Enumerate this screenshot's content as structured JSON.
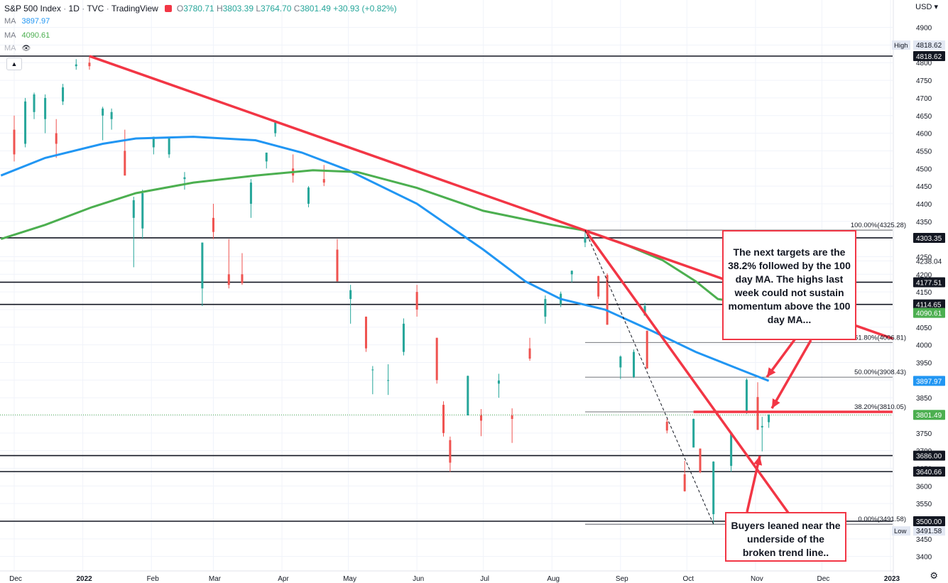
{
  "header": {
    "symbol": "S&P 500 Index",
    "interval": "1D",
    "source": "TVC",
    "platform": "TradingView",
    "o_label": "O",
    "o": "3780.71",
    "h_label": "H",
    "h": "3803.39",
    "l_label": "L",
    "l": "3764.70",
    "c_label": "C",
    "c": "3801.49",
    "change": "+30.93 (+0.82%)"
  },
  "ma_rows": [
    {
      "label": "MA",
      "value": "3897.97",
      "color": "#2196f3"
    },
    {
      "label": "MA",
      "value": "4090.61",
      "color": "#4caf50"
    },
    {
      "label": "MA",
      "value": ""
    }
  ],
  "currency": "USD",
  "collapse_icon": "chevron-up-icon",
  "settings_icon": "gear-icon",
  "annotations": {
    "top": "The next targets are the 38.2% followed by the 100 day MA. The highs last week could not sustain momentum above the 100 day MA...",
    "bottom": "Buyers leaned near the underside of the broken trend line.."
  },
  "colors": {
    "up": "#26a69a",
    "down": "#ef5350",
    "ma100": "#2196f3",
    "ma200": "#4caf50",
    "trend": "#f23645"
  },
  "chart_data": {
    "type": "candlestick",
    "title": "S&P 500 Index, 1D",
    "ylim": [
      3380,
      4930
    ],
    "yticks": [
      3400,
      3450,
      3500,
      3550,
      3600,
      3650,
      3700,
      3750,
      3800,
      3850,
      3900,
      3950,
      4000,
      4050,
      4100,
      4150,
      4200,
      4238.04,
      4250,
      4350,
      4400,
      4450,
      4500,
      4550,
      4600,
      4650,
      4700,
      4750,
      4800,
      4850,
      4900
    ],
    "x_labels": [
      "Dec",
      "2022",
      "Feb",
      "Mar",
      "Apr",
      "May",
      "Jun",
      "Jul",
      "Aug",
      "Sep",
      "Oct",
      "Nov",
      "Dec",
      "2023"
    ],
    "candles": [
      {
        "d": "2021-12-01",
        "o": 4610,
        "h": 4650,
        "l": 4520,
        "c": 4540
      },
      {
        "d": "2021-12-06",
        "o": 4570,
        "h": 4700,
        "l": 4560,
        "c": 4690
      },
      {
        "d": "2021-12-10",
        "o": 4660,
        "h": 4715,
        "l": 4640,
        "c": 4710
      },
      {
        "d": "2021-12-15",
        "o": 4640,
        "h": 4710,
        "l": 4600,
        "c": 4700
      },
      {
        "d": "2021-12-20",
        "o": 4600,
        "h": 4640,
        "l": 4530,
        "c": 4570
      },
      {
        "d": "2021-12-23",
        "o": 4690,
        "h": 4740,
        "l": 4680,
        "c": 4730
      },
      {
        "d": "2021-12-29",
        "o": 4790,
        "h": 4810,
        "l": 4780,
        "c": 4795
      },
      {
        "d": "2022-01-04",
        "o": 4800,
        "h": 4818.62,
        "l": 4780,
        "c": 4790
      },
      {
        "d": "2022-01-10",
        "o": 4650,
        "h": 4675,
        "l": 4580,
        "c": 4670
      },
      {
        "d": "2022-01-14",
        "o": 4640,
        "h": 4670,
        "l": 4610,
        "c": 4660
      },
      {
        "d": "2022-01-20",
        "o": 4550,
        "h": 4610,
        "l": 4480,
        "c": 4480
      },
      {
        "d": "2022-01-24",
        "o": 4360,
        "h": 4420,
        "l": 4220,
        "c": 4410
      },
      {
        "d": "2022-01-28",
        "o": 4330,
        "h": 4440,
        "l": 4300,
        "c": 4430
      },
      {
        "d": "2022-02-02",
        "o": 4560,
        "h": 4590,
        "l": 4540,
        "c": 4590
      },
      {
        "d": "2022-02-09",
        "o": 4540,
        "h": 4590,
        "l": 4530,
        "c": 4590
      },
      {
        "d": "2022-02-16",
        "o": 4470,
        "h": 4490,
        "l": 4440,
        "c": 4475
      },
      {
        "d": "2022-02-24",
        "o": 4160,
        "h": 4290,
        "l": 4110,
        "c": 4290
      },
      {
        "d": "2022-03-01",
        "o": 4360,
        "h": 4400,
        "l": 4300,
        "c": 4320
      },
      {
        "d": "2022-03-08",
        "o": 4200,
        "h": 4300,
        "l": 4160,
        "c": 4170
      },
      {
        "d": "2022-03-14",
        "o": 4200,
        "h": 4260,
        "l": 4170,
        "c": 4175
      },
      {
        "d": "2022-03-18",
        "o": 4400,
        "h": 4470,
        "l": 4360,
        "c": 4460
      },
      {
        "d": "2022-03-25",
        "o": 4520,
        "h": 4545,
        "l": 4500,
        "c": 4545
      },
      {
        "d": "2022-03-29",
        "o": 4600,
        "h": 4637,
        "l": 4590,
        "c": 4630
      },
      {
        "d": "2022-04-06",
        "o": 4500,
        "h": 4540,
        "l": 4460,
        "c": 4480
      },
      {
        "d": "2022-04-13",
        "o": 4400,
        "h": 4450,
        "l": 4390,
        "c": 4446
      },
      {
        "d": "2022-04-20",
        "o": 4470,
        "h": 4510,
        "l": 4450,
        "c": 4460
      },
      {
        "d": "2022-04-26",
        "o": 4270,
        "h": 4300,
        "l": 4180,
        "c": 4180
      },
      {
        "d": "2022-05-02",
        "o": 4130,
        "h": 4170,
        "l": 4060,
        "c": 4155
      },
      {
        "d": "2022-05-09",
        "o": 4080,
        "h": 4080,
        "l": 3980,
        "c": 3990
      },
      {
        "d": "2022-05-12",
        "o": 3930,
        "h": 3940,
        "l": 3860,
        "c": 3930
      },
      {
        "d": "2022-05-19",
        "o": 3900,
        "h": 3945,
        "l": 3858,
        "c": 3900
      },
      {
        "d": "2022-05-26",
        "o": 3980,
        "h": 4075,
        "l": 3970,
        "c": 4060
      },
      {
        "d": "2022-06-01",
        "o": 4150,
        "h": 4170,
        "l": 4080,
        "c": 4100
      },
      {
        "d": "2022-06-10",
        "o": 4020,
        "h": 4020,
        "l": 3890,
        "c": 3900
      },
      {
        "d": "2022-06-13",
        "o": 3830,
        "h": 3840,
        "l": 3740,
        "c": 3750
      },
      {
        "d": "2022-06-16",
        "o": 3730,
        "h": 3740,
        "l": 3640,
        "c": 3666
      },
      {
        "d": "2022-06-24",
        "o": 3800,
        "h": 3913,
        "l": 3800,
        "c": 3912
      },
      {
        "d": "2022-06-30",
        "o": 3800,
        "h": 3818,
        "l": 3741,
        "c": 3785
      },
      {
        "d": "2022-07-08",
        "o": 3890,
        "h": 3918,
        "l": 3850,
        "c": 3899
      },
      {
        "d": "2022-07-14",
        "o": 3800,
        "h": 3820,
        "l": 3722,
        "c": 3790
      },
      {
        "d": "2022-07-22",
        "o": 3990,
        "h": 4020,
        "l": 3955,
        "c": 3961
      },
      {
        "d": "2022-07-29",
        "o": 4080,
        "h": 4140,
        "l": 4060,
        "c": 4130
      },
      {
        "d": "2022-08-05",
        "o": 4115,
        "h": 4151,
        "l": 4107,
        "c": 4145
      },
      {
        "d": "2022-08-10",
        "o": 4200,
        "h": 4211,
        "l": 4177,
        "c": 4210
      },
      {
        "d": "2022-08-16",
        "o": 4290,
        "h": 4325.28,
        "l": 4277,
        "c": 4305
      },
      {
        "d": "2022-08-22",
        "o": 4195,
        "h": 4196,
        "l": 4130,
        "c": 4137
      },
      {
        "d": "2022-08-26",
        "o": 4198,
        "h": 4203,
        "l": 4057,
        "c": 4057
      },
      {
        "d": "2022-09-01",
        "o": 3936,
        "h": 3970,
        "l": 3903,
        "c": 3967
      },
      {
        "d": "2022-09-07",
        "o": 3909,
        "h": 3987,
        "l": 3906,
        "c": 3980
      },
      {
        "d": "2022-09-12",
        "o": 4083,
        "h": 4119,
        "l": 4083,
        "c": 4110
      },
      {
        "d": "2022-09-13",
        "o": 4040,
        "h": 4040,
        "l": 3933,
        "c": 3933
      },
      {
        "d": "2022-09-22",
        "o": 3782,
        "h": 3790,
        "l": 3749,
        "c": 3757
      },
      {
        "d": "2022-09-30",
        "o": 3633,
        "h": 3671,
        "l": 3584,
        "c": 3585
      },
      {
        "d": "2022-10-04",
        "o": 3709,
        "h": 3791,
        "l": 3709,
        "c": 3790
      },
      {
        "d": "2022-10-07",
        "o": 3706,
        "h": 3706,
        "l": 3636,
        "c": 3639
      },
      {
        "d": "2022-10-13",
        "o": 3520,
        "h": 3670,
        "l": 3491.58,
        "c": 3669
      },
      {
        "d": "2022-10-21",
        "o": 3657,
        "h": 3752,
        "l": 3640,
        "c": 3752
      },
      {
        "d": "2022-10-28",
        "o": 3808,
        "h": 3905,
        "l": 3804,
        "c": 3901
      },
      {
        "d": "2022-11-02",
        "o": 3852,
        "h": 3894,
        "l": 3759,
        "c": 3759
      },
      {
        "d": "2022-11-04",
        "o": 3766,
        "h": 3796,
        "l": 3698,
        "c": 3770
      },
      {
        "d": "2022-11-07",
        "o": 3780.71,
        "h": 3803.39,
        "l": 3764.7,
        "c": 3801.49
      }
    ],
    "series": [
      {
        "name": "MA",
        "last": 3897.97,
        "points": [
          [
            "2021-11-25",
            4480
          ],
          [
            "2021-12-15",
            4530
          ],
          [
            "2022-01-10",
            4570
          ],
          [
            "2022-01-25",
            4585
          ],
          [
            "2022-02-20",
            4590
          ],
          [
            "2022-03-20",
            4580
          ],
          [
            "2022-04-10",
            4545
          ],
          [
            "2022-05-01",
            4495
          ],
          [
            "2022-06-01",
            4400
          ],
          [
            "2022-07-01",
            4270
          ],
          [
            "2022-07-20",
            4180
          ],
          [
            "2022-08-05",
            4130
          ],
          [
            "2022-08-25",
            4100
          ],
          [
            "2022-09-15",
            4040
          ],
          [
            "2022-10-05",
            3980
          ],
          [
            "2022-10-25",
            3930
          ],
          [
            "2022-11-07",
            3897.97
          ]
        ]
      },
      {
        "name": "MA",
        "last": 4090.61,
        "points": [
          [
            "2021-11-25",
            4300
          ],
          [
            "2021-12-15",
            4340
          ],
          [
            "2022-01-05",
            4390
          ],
          [
            "2022-01-25",
            4430
          ],
          [
            "2022-02-20",
            4460
          ],
          [
            "2022-03-20",
            4480
          ],
          [
            "2022-04-15",
            4495
          ],
          [
            "2022-05-05",
            4490
          ],
          [
            "2022-06-01",
            4445
          ],
          [
            "2022-07-01",
            4380
          ],
          [
            "2022-08-01",
            4340
          ],
          [
            "2022-08-15",
            4325
          ],
          [
            "2022-09-01",
            4290
          ],
          [
            "2022-09-20",
            4240
          ],
          [
            "2022-10-05",
            4180
          ],
          [
            "2022-10-15",
            4130
          ],
          [
            "2022-10-25",
            4120
          ]
        ]
      }
    ],
    "horizontal_levels": [
      {
        "value": 4818.62,
        "label": "4818.62",
        "tag": "High"
      },
      {
        "value": 4303.35,
        "label": "4303.35"
      },
      {
        "value": 4177.51,
        "label": "4177.51"
      },
      {
        "value": 4114.65,
        "label": "4114.65"
      },
      {
        "value": 3686.0,
        "label": "3686.00"
      },
      {
        "value": 3640.66,
        "label": "3640.66"
      },
      {
        "value": 3500.0,
        "label": "3500.00"
      }
    ],
    "price_tags": [
      {
        "value": 4090.61,
        "label": "4090.61",
        "color": "#4caf50"
      },
      {
        "value": 3897.97,
        "label": "3897.97",
        "color": "#2196f3"
      },
      {
        "value": 3801.49,
        "label": "3801.49",
        "color": "#4caf50"
      },
      {
        "value": 3491.58,
        "label": "3491.58",
        "tag": "Low"
      }
    ],
    "fibonacci": [
      {
        "value": 4325.28,
        "label": "100.00%(4325.28)"
      },
      {
        "value": 4006.81,
        "label": "61.80%(4006.81)"
      },
      {
        "value": 3908.43,
        "label": "50.00%(3908.43)"
      },
      {
        "value": 3810.05,
        "label": "38.20%(3810.05)"
      },
      {
        "value": 3491.58,
        "label": "0.00%(3491.58)"
      }
    ],
    "trendlines": [
      [
        [
          "2022-01-04",
          4818.62
        ],
        [
          "2023-01-10",
          4000
        ]
      ],
      [
        [
          "2022-08-16",
          4325.28
        ],
        [
          "2022-11-30",
          3400
        ]
      ],
      [
        [
          "2022-08-16",
          4325.28
        ],
        [
          "2022-10-13",
          3491.58
        ]
      ]
    ]
  }
}
